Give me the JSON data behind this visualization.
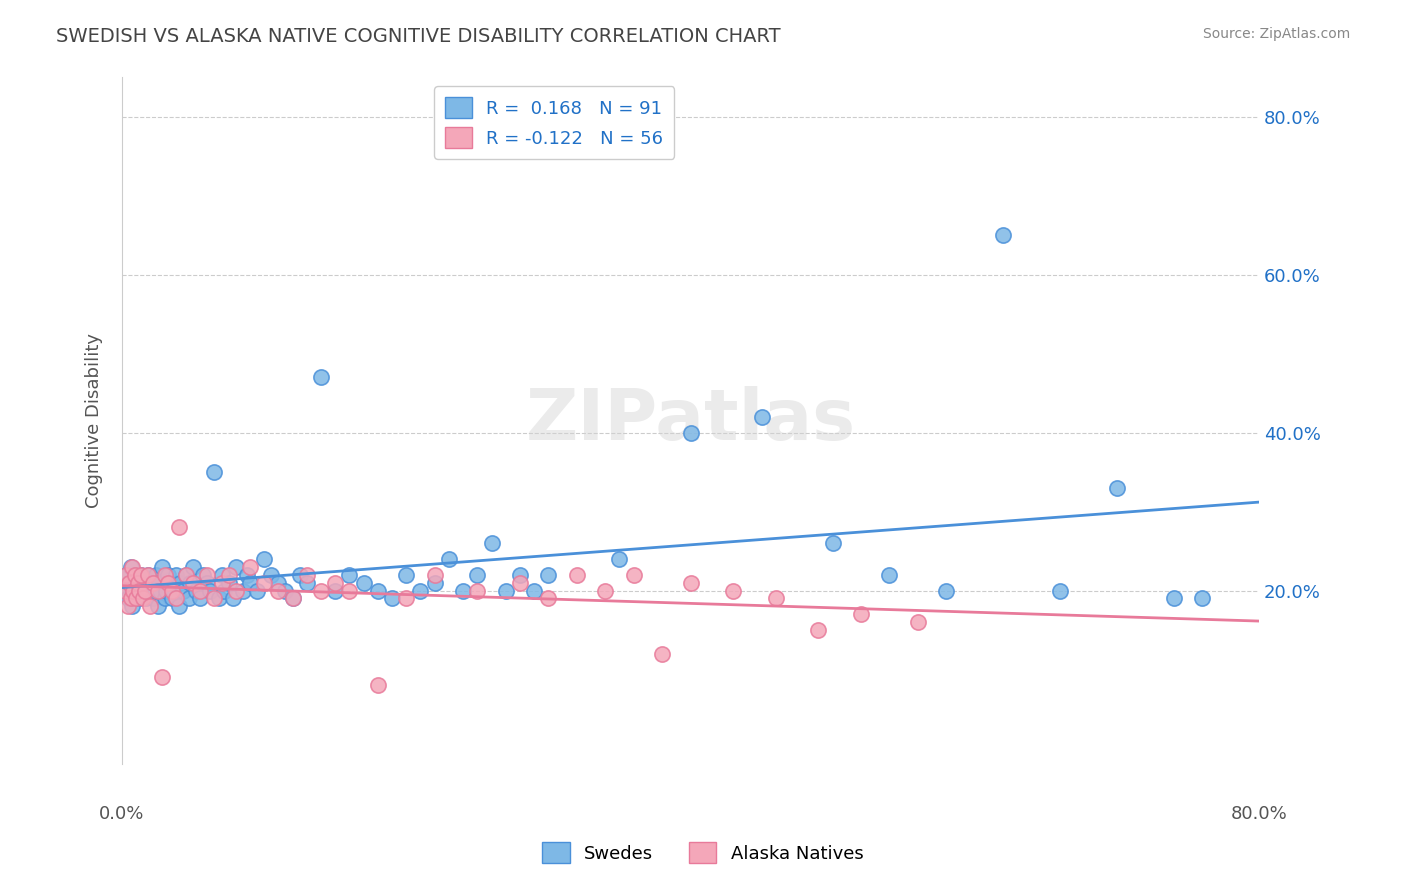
{
  "title": "SWEDISH VS ALASKA NATIVE COGNITIVE DISABILITY CORRELATION CHART",
  "source": "Source: ZipAtlas.com",
  "ylabel": "Cognitive Disability",
  "xlim": [
    0.0,
    0.8
  ],
  "ylim": [
    -0.02,
    0.85
  ],
  "legend_r1": "R =  0.168",
  "legend_n1": "N = 91",
  "legend_r2": "R = -0.122",
  "legend_n2": "N = 56",
  "color_blue": "#7eb8e6",
  "color_pink": "#f4a7b9",
  "color_blue_line": "#4a90d9",
  "color_pink_line": "#e87a9a",
  "color_blue_dark": "#2171c7",
  "color_pink_dark": "#d95b7a",
  "watermark": "ZIPatlas",
  "swedes_x": [
    0.002,
    0.003,
    0.004,
    0.005,
    0.006,
    0.007,
    0.008,
    0.009,
    0.01,
    0.011,
    0.012,
    0.013,
    0.014,
    0.015,
    0.016,
    0.017,
    0.018,
    0.019,
    0.02,
    0.022,
    0.023,
    0.024,
    0.025,
    0.026,
    0.027,
    0.028,
    0.03,
    0.031,
    0.032,
    0.034,
    0.035,
    0.036,
    0.038,
    0.04,
    0.041,
    0.043,
    0.045,
    0.047,
    0.048,
    0.05,
    0.052,
    0.055,
    0.057,
    0.06,
    0.062,
    0.065,
    0.068,
    0.07,
    0.072,
    0.075,
    0.078,
    0.08,
    0.085,
    0.088,
    0.09,
    0.095,
    0.1,
    0.105,
    0.11,
    0.115,
    0.12,
    0.125,
    0.13,
    0.14,
    0.15,
    0.16,
    0.17,
    0.18,
    0.19,
    0.2,
    0.21,
    0.22,
    0.23,
    0.24,
    0.25,
    0.26,
    0.27,
    0.28,
    0.29,
    0.3,
    0.35,
    0.4,
    0.45,
    0.5,
    0.54,
    0.58,
    0.62,
    0.66,
    0.7,
    0.74,
    0.76
  ],
  "swedes_y": [
    0.2,
    0.22,
    0.19,
    0.21,
    0.23,
    0.18,
    0.2,
    0.22,
    0.19,
    0.21,
    0.2,
    0.22,
    0.19,
    0.21,
    0.2,
    0.19,
    0.22,
    0.2,
    0.21,
    0.19,
    0.2,
    0.22,
    0.18,
    0.21,
    0.2,
    0.23,
    0.19,
    0.2,
    0.22,
    0.21,
    0.19,
    0.2,
    0.22,
    0.18,
    0.21,
    0.2,
    0.22,
    0.19,
    0.21,
    0.23,
    0.2,
    0.19,
    0.22,
    0.21,
    0.2,
    0.35,
    0.19,
    0.22,
    0.2,
    0.21,
    0.19,
    0.23,
    0.2,
    0.22,
    0.21,
    0.2,
    0.24,
    0.22,
    0.21,
    0.2,
    0.19,
    0.22,
    0.21,
    0.47,
    0.2,
    0.22,
    0.21,
    0.2,
    0.19,
    0.22,
    0.2,
    0.21,
    0.24,
    0.2,
    0.22,
    0.26,
    0.2,
    0.22,
    0.2,
    0.22,
    0.24,
    0.4,
    0.42,
    0.26,
    0.22,
    0.2,
    0.65,
    0.2,
    0.33,
    0.19,
    0.19
  ],
  "alaska_x": [
    0.002,
    0.003,
    0.004,
    0.005,
    0.006,
    0.007,
    0.008,
    0.009,
    0.01,
    0.011,
    0.012,
    0.013,
    0.015,
    0.016,
    0.018,
    0.02,
    0.022,
    0.025,
    0.028,
    0.03,
    0.032,
    0.035,
    0.038,
    0.04,
    0.045,
    0.05,
    0.055,
    0.06,
    0.065,
    0.07,
    0.075,
    0.08,
    0.09,
    0.1,
    0.11,
    0.12,
    0.13,
    0.14,
    0.15,
    0.16,
    0.18,
    0.2,
    0.22,
    0.25,
    0.28,
    0.3,
    0.32,
    0.34,
    0.36,
    0.38,
    0.4,
    0.43,
    0.46,
    0.49,
    0.52,
    0.56
  ],
  "alaska_y": [
    0.2,
    0.22,
    0.18,
    0.21,
    0.19,
    0.23,
    0.2,
    0.22,
    0.19,
    0.21,
    0.2,
    0.22,
    0.19,
    0.2,
    0.22,
    0.18,
    0.21,
    0.2,
    0.09,
    0.22,
    0.21,
    0.2,
    0.19,
    0.28,
    0.22,
    0.21,
    0.2,
    0.22,
    0.19,
    0.21,
    0.22,
    0.2,
    0.23,
    0.21,
    0.2,
    0.19,
    0.22,
    0.2,
    0.21,
    0.2,
    0.08,
    0.19,
    0.22,
    0.2,
    0.21,
    0.19,
    0.22,
    0.2,
    0.22,
    0.12,
    0.21,
    0.2,
    0.19,
    0.15,
    0.17,
    0.16
  ]
}
